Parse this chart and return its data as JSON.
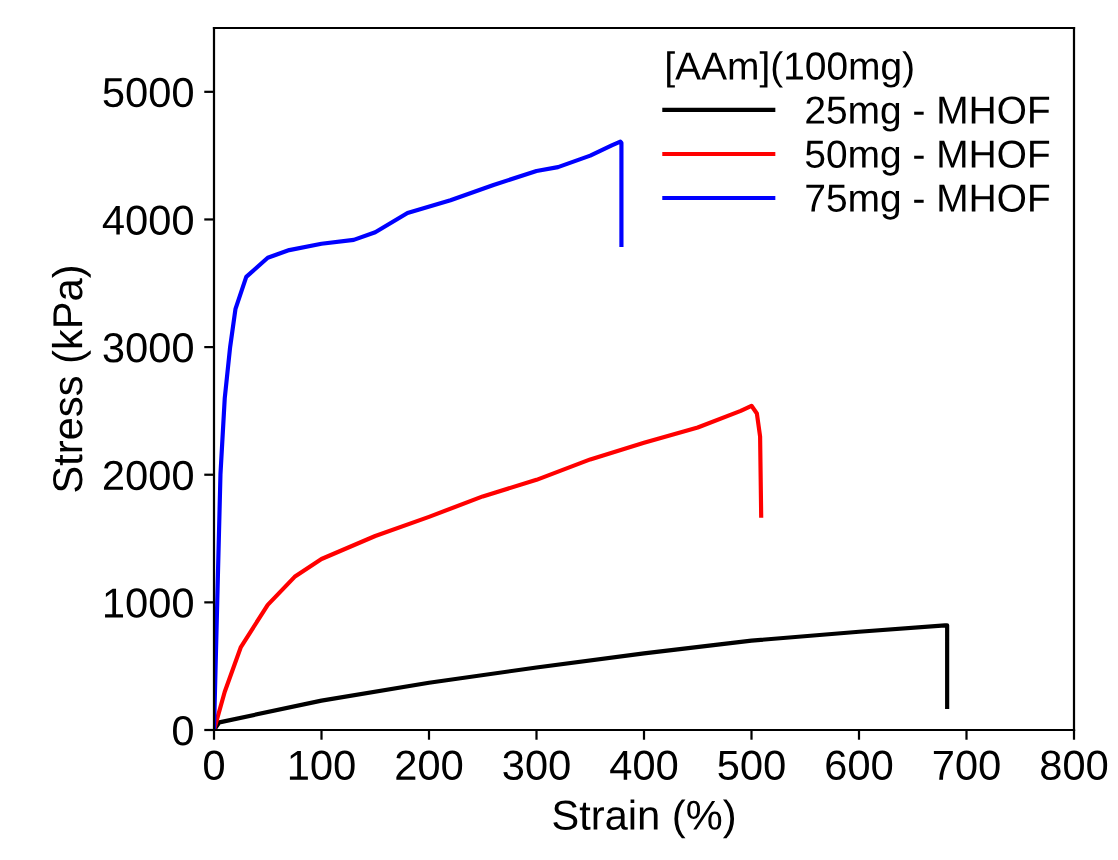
{
  "chart_data": {
    "type": "line",
    "xlabel": "Strain (%)",
    "ylabel": "Stress (kPa)",
    "legend_title": "[AAm](100mg)",
    "legend": "top right",
    "grid": false,
    "marker": "none",
    "line_style": "solid",
    "xlim": [
      0,
      800
    ],
    "xticks": [
      0,
      100,
      200,
      300,
      400,
      500,
      600,
      700,
      800
    ],
    "ylim": [
      0,
      5500
    ],
    "yticks": [
      0,
      1000,
      2000,
      3000,
      4000,
      5000
    ],
    "series": [
      {
        "name": "25mg - MHOF",
        "color": "#000000",
        "x": [
          0,
          5,
          100,
          200,
          300,
          400,
          500,
          600,
          680,
          682,
          682
        ],
        "values": [
          0,
          60,
          230,
          370,
          490,
          600,
          700,
          770,
          820,
          820,
          180
        ]
      },
      {
        "name": "50mg - MHOF",
        "color": "#ff0000",
        "x": [
          0,
          10,
          25,
          50,
          75,
          100,
          150,
          200,
          250,
          300,
          350,
          400,
          450,
          490,
          500,
          505,
          508,
          509
        ],
        "values": [
          0,
          300,
          650,
          980,
          1200,
          1340,
          1520,
          1670,
          1830,
          1960,
          2120,
          2250,
          2370,
          2500,
          2540,
          2480,
          2300,
          1680
        ]
      },
      {
        "name": "75mg - MHOF",
        "color": "#0000ff",
        "x": [
          0,
          3,
          6,
          10,
          15,
          20,
          30,
          50,
          70,
          100,
          130,
          150,
          180,
          220,
          260,
          300,
          320,
          350,
          370,
          378,
          379,
          379
        ],
        "values": [
          0,
          1000,
          2000,
          2600,
          3000,
          3300,
          3550,
          3700,
          3760,
          3810,
          3840,
          3900,
          4050,
          4150,
          4270,
          4380,
          4410,
          4500,
          4580,
          4610,
          4600,
          3800
        ]
      }
    ]
  }
}
